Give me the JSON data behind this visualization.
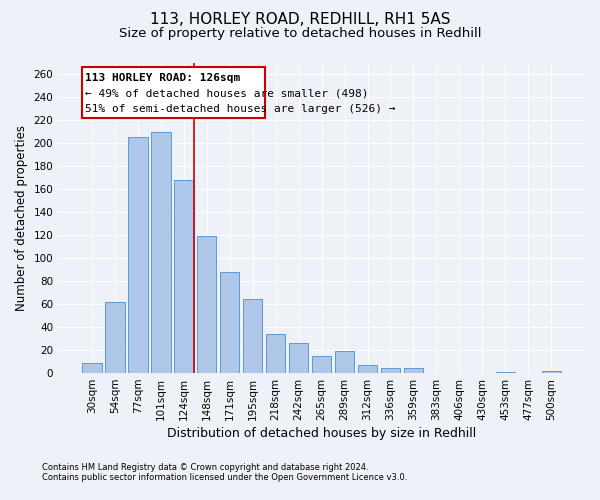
{
  "title": "113, HORLEY ROAD, REDHILL, RH1 5AS",
  "subtitle": "Size of property relative to detached houses in Redhill",
  "xlabel": "Distribution of detached houses by size in Redhill",
  "ylabel": "Number of detached properties",
  "footnote1": "Contains HM Land Registry data © Crown copyright and database right 2024.",
  "footnote2": "Contains public sector information licensed under the Open Government Licence v3.0.",
  "annotation_line1": "113 HORLEY ROAD: 126sqm",
  "annotation_line2": "← 49% of detached houses are smaller (498)",
  "annotation_line3": "51% of semi-detached houses are larger (526) →",
  "bar_labels": [
    "30sqm",
    "54sqm",
    "77sqm",
    "101sqm",
    "124sqm",
    "148sqm",
    "171sqm",
    "195sqm",
    "218sqm",
    "242sqm",
    "265sqm",
    "289sqm",
    "312sqm",
    "336sqm",
    "359sqm",
    "383sqm",
    "406sqm",
    "430sqm",
    "453sqm",
    "477sqm",
    "500sqm"
  ],
  "bar_values": [
    9,
    62,
    205,
    210,
    168,
    119,
    88,
    64,
    34,
    26,
    15,
    19,
    7,
    4,
    4,
    0,
    0,
    0,
    1,
    0,
    2
  ],
  "bar_color": "#aec6e8",
  "bar_edge_color": "#5a9ad5",
  "red_line_bar_index": 4,
  "ylim": [
    0,
    270
  ],
  "yticks": [
    0,
    20,
    40,
    60,
    80,
    100,
    120,
    140,
    160,
    180,
    200,
    220,
    240,
    260
  ],
  "bg_color": "#eef2f8",
  "plot_bg_color": "#eef2f8",
  "grid_color": "#ffffff",
  "annotation_box_color": "#cc0000",
  "red_line_color": "#cc0000",
  "title_fontsize": 11,
  "subtitle_fontsize": 9.5,
  "ylabel_fontsize": 8.5,
  "xlabel_fontsize": 9,
  "tick_fontsize": 7.5,
  "annot_fontsize": 8,
  "footnote_fontsize": 6
}
